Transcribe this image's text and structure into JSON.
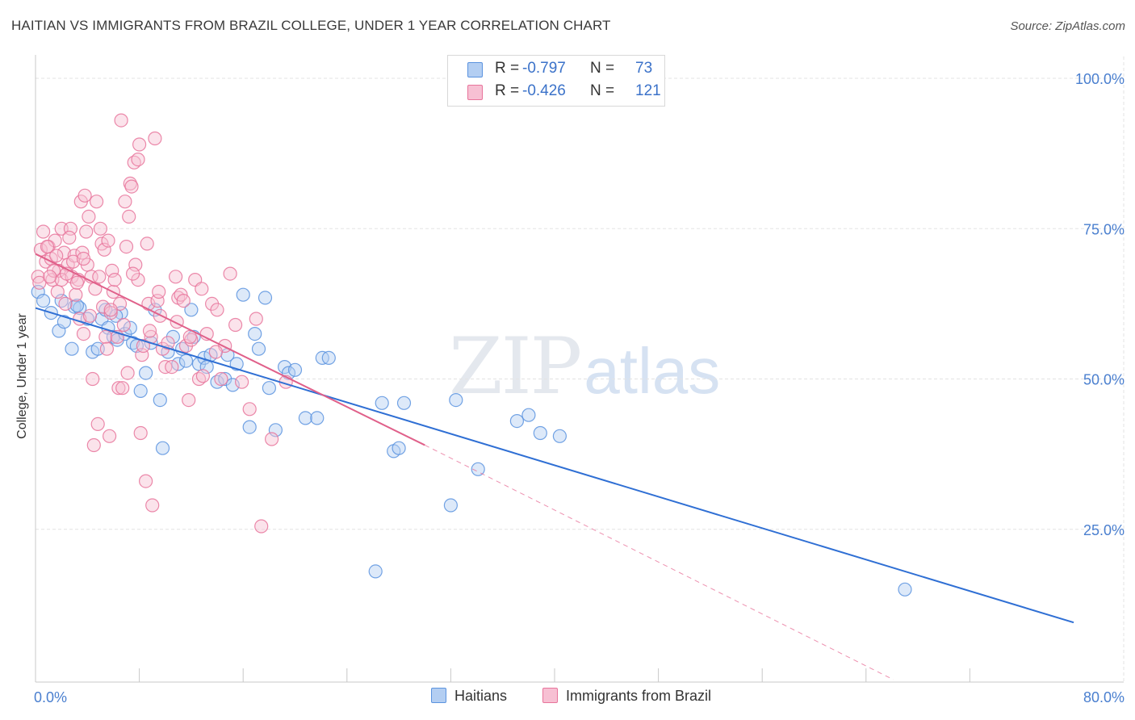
{
  "title": "HAITIAN VS IMMIGRANTS FROM BRAZIL COLLEGE, UNDER 1 YEAR CORRELATION CHART",
  "source": "Source: ZipAtlas.com",
  "watermark": {
    "zip": "ZIP",
    "atlas": "atlas"
  },
  "stats": [
    {
      "r_label": "R =",
      "r_value": "-0.797",
      "n_label": "N =",
      "n_value": "73"
    },
    {
      "r_label": "R =",
      "r_value": "-0.426",
      "n_label": "N =",
      "n_value": "121"
    }
  ],
  "chart_data": {
    "type": "scatter",
    "ylabel": "College, Under 1 year",
    "xlim": [
      0,
      80
    ],
    "ylim": [
      0,
      100
    ],
    "x_ticks": [
      "0.0%",
      "80.0%"
    ],
    "y_ticks": [
      {
        "value": 100,
        "label": "100.0%"
      },
      {
        "value": 75,
        "label": "75.0%"
      },
      {
        "value": 50,
        "label": "50.0%"
      },
      {
        "value": 25,
        "label": "25.0%"
      }
    ],
    "grid": true,
    "legend_position": "bottom",
    "series": [
      {
        "name": "Haitians",
        "color": "#5b93df",
        "fill": "#b3cef2",
        "trend": {
          "x": [
            0,
            80
          ],
          "y": [
            61.8,
            9.5
          ],
          "dash_from": null
        },
        "points": [
          [
            0.2,
            64.5
          ],
          [
            0.6,
            63.0
          ],
          [
            1.2,
            61.0
          ],
          [
            1.8,
            58.0
          ],
          [
            2.2,
            59.5
          ],
          [
            2.8,
            55.0
          ],
          [
            3.0,
            62.0
          ],
          [
            3.4,
            61.8
          ],
          [
            4.0,
            60.0
          ],
          [
            4.4,
            54.5
          ],
          [
            4.8,
            55.0
          ],
          [
            5.1,
            60.0
          ],
          [
            5.4,
            61.5
          ],
          [
            5.6,
            58.5
          ],
          [
            6.0,
            57.0
          ],
          [
            6.3,
            56.5
          ],
          [
            6.6,
            61.0
          ],
          [
            6.9,
            57.5
          ],
          [
            7.3,
            58.5
          ],
          [
            7.5,
            56.0
          ],
          [
            7.8,
            55.5
          ],
          [
            8.1,
            48.0
          ],
          [
            8.5,
            51.0
          ],
          [
            8.9,
            56.0
          ],
          [
            9.2,
            61.5
          ],
          [
            9.6,
            46.5
          ],
          [
            9.8,
            38.5
          ],
          [
            10.2,
            54.5
          ],
          [
            10.6,
            57.0
          ],
          [
            11.0,
            52.5
          ],
          [
            11.3,
            55.0
          ],
          [
            11.6,
            53.0
          ],
          [
            12.0,
            61.5
          ],
          [
            12.2,
            57.0
          ],
          [
            12.6,
            52.5
          ],
          [
            13.0,
            53.5
          ],
          [
            13.5,
            54.0
          ],
          [
            14.0,
            49.5
          ],
          [
            14.6,
            50.0
          ],
          [
            14.8,
            54.0
          ],
          [
            15.2,
            49.0
          ],
          [
            15.5,
            52.5
          ],
          [
            16.0,
            64.0
          ],
          [
            16.5,
            42.0
          ],
          [
            16.9,
            57.5
          ],
          [
            17.2,
            55.0
          ],
          [
            17.7,
            63.5
          ],
          [
            18.0,
            48.5
          ],
          [
            18.5,
            41.5
          ],
          [
            19.2,
            52.0
          ],
          [
            19.5,
            51.0
          ],
          [
            20.0,
            51.5
          ],
          [
            20.8,
            43.5
          ],
          [
            21.7,
            43.5
          ],
          [
            22.1,
            53.5
          ],
          [
            22.6,
            53.5
          ],
          [
            26.7,
            46.0
          ],
          [
            27.6,
            38.0
          ],
          [
            28.0,
            38.5
          ],
          [
            28.4,
            46.0
          ],
          [
            32.0,
            29.0
          ],
          [
            32.4,
            46.5
          ],
          [
            34.1,
            35.0
          ],
          [
            37.1,
            43.0
          ],
          [
            38.0,
            44.0
          ],
          [
            38.9,
            41.0
          ],
          [
            40.4,
            40.5
          ],
          [
            26.2,
            18.0
          ],
          [
            67.0,
            15.0
          ],
          [
            2.0,
            63.0
          ],
          [
            3.2,
            62.2
          ],
          [
            6.2,
            60.5
          ],
          [
            13.2,
            52.0
          ]
        ]
      },
      {
        "name": "Immigrants from Brazil",
        "color": "#e8749b",
        "fill": "#f7c0d3",
        "trend": {
          "x": [
            0,
            30,
            80
          ],
          "y": [
            70.8,
            39.0,
            -15.0
          ],
          "dash_from": 30
        },
        "points": [
          [
            0.2,
            67.0
          ],
          [
            0.4,
            71.5
          ],
          [
            0.6,
            74.5
          ],
          [
            0.8,
            69.5
          ],
          [
            1.0,
            72.0
          ],
          [
            1.2,
            70.0
          ],
          [
            1.3,
            66.5
          ],
          [
            1.5,
            73.0
          ],
          [
            1.7,
            64.5
          ],
          [
            1.8,
            68.0
          ],
          [
            2.0,
            75.0
          ],
          [
            2.0,
            66.5
          ],
          [
            2.2,
            71.0
          ],
          [
            2.3,
            62.5
          ],
          [
            2.5,
            69.0
          ],
          [
            2.7,
            75.0
          ],
          [
            2.8,
            67.0
          ],
          [
            3.0,
            70.5
          ],
          [
            3.1,
            64.0
          ],
          [
            3.3,
            66.5
          ],
          [
            3.4,
            60.0
          ],
          [
            3.5,
            79.5
          ],
          [
            3.6,
            71.0
          ],
          [
            3.7,
            57.5
          ],
          [
            3.8,
            80.5
          ],
          [
            3.9,
            74.5
          ],
          [
            4.0,
            69.0
          ],
          [
            4.1,
            77.0
          ],
          [
            4.2,
            60.5
          ],
          [
            4.3,
            67.0
          ],
          [
            4.4,
            50.0
          ],
          [
            4.5,
            39.0
          ],
          [
            4.6,
            65.0
          ],
          [
            4.7,
            79.5
          ],
          [
            4.8,
            42.5
          ],
          [
            5.0,
            75.0
          ],
          [
            5.1,
            72.5
          ],
          [
            5.2,
            62.0
          ],
          [
            5.3,
            71.5
          ],
          [
            5.4,
            57.0
          ],
          [
            5.5,
            55.0
          ],
          [
            5.6,
            73.0
          ],
          [
            5.7,
            40.5
          ],
          [
            5.8,
            61.0
          ],
          [
            5.9,
            68.0
          ],
          [
            6.0,
            64.5
          ],
          [
            6.1,
            66.5
          ],
          [
            6.3,
            57.0
          ],
          [
            6.4,
            48.5
          ],
          [
            6.5,
            62.5
          ],
          [
            6.7,
            48.5
          ],
          [
            6.9,
            79.5
          ],
          [
            7.0,
            72.0
          ],
          [
            7.1,
            51.0
          ],
          [
            7.2,
            77.0
          ],
          [
            7.3,
            82.5
          ],
          [
            7.4,
            82.0
          ],
          [
            7.6,
            86.0
          ],
          [
            7.7,
            69.0
          ],
          [
            7.9,
            66.5
          ],
          [
            8.0,
            89.0
          ],
          [
            8.1,
            41.0
          ],
          [
            8.2,
            54.0
          ],
          [
            8.3,
            55.5
          ],
          [
            8.5,
            33.0
          ],
          [
            8.6,
            72.5
          ],
          [
            8.7,
            62.5
          ],
          [
            8.9,
            57.0
          ],
          [
            9.0,
            29.0
          ],
          [
            9.2,
            90.0
          ],
          [
            9.4,
            63.0
          ],
          [
            9.6,
            60.5
          ],
          [
            9.8,
            55.0
          ],
          [
            10.0,
            52.0
          ],
          [
            10.2,
            56.0
          ],
          [
            10.5,
            52.0
          ],
          [
            10.8,
            67.0
          ],
          [
            11.0,
            63.5
          ],
          [
            11.2,
            64.0
          ],
          [
            11.4,
            63.0
          ],
          [
            11.6,
            55.5
          ],
          [
            11.8,
            46.5
          ],
          [
            12.0,
            56.5
          ],
          [
            12.3,
            66.5
          ],
          [
            12.6,
            50.0
          ],
          [
            12.9,
            50.5
          ],
          [
            13.2,
            57.5
          ],
          [
            13.6,
            62.5
          ],
          [
            14.0,
            61.5
          ],
          [
            14.3,
            50.0
          ],
          [
            14.6,
            55.5
          ],
          [
            15.0,
            67.5
          ],
          [
            15.4,
            59.0
          ],
          [
            15.9,
            49.5
          ],
          [
            16.5,
            45.0
          ],
          [
            17.0,
            60.0
          ],
          [
            17.4,
            25.5
          ],
          [
            18.2,
            40.0
          ],
          [
            19.3,
            49.5
          ],
          [
            6.6,
            93.0
          ],
          [
            7.9,
            86.5
          ],
          [
            1.4,
            68.0
          ],
          [
            2.4,
            67.5
          ],
          [
            2.9,
            69.5
          ],
          [
            0.9,
            72.0
          ],
          [
            1.6,
            70.5
          ],
          [
            3.2,
            66.0
          ],
          [
            4.9,
            67.0
          ],
          [
            5.8,
            61.5
          ],
          [
            0.3,
            66.0
          ],
          [
            1.1,
            67.0
          ],
          [
            2.6,
            73.5
          ],
          [
            3.7,
            70.0
          ],
          [
            6.8,
            59.0
          ],
          [
            7.5,
            67.5
          ],
          [
            8.8,
            58.0
          ],
          [
            9.5,
            64.5
          ],
          [
            10.9,
            59.5
          ],
          [
            11.9,
            57.0
          ],
          [
            12.8,
            65.0
          ],
          [
            13.9,
            54.5
          ]
        ]
      }
    ]
  }
}
